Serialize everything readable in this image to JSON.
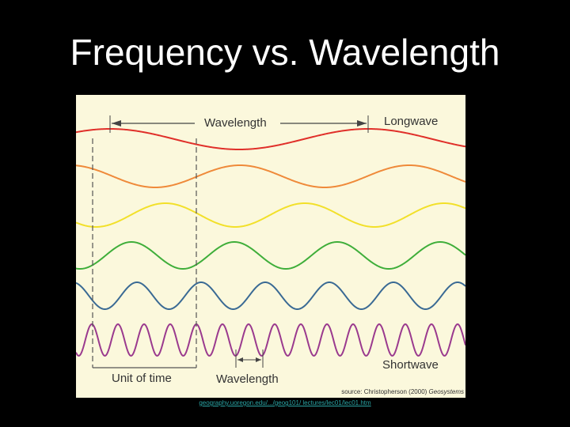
{
  "slide": {
    "title": "Frequency vs. Wavelength",
    "link": "geography.uoregon.edu/.../geog101/ lectures/lec01/lec01.htm"
  },
  "figure": {
    "label_wavelength_top": "Wavelength",
    "label_longwave": "Longwave",
    "label_shortwave": "Shortwave",
    "label_unit_of_time": "Unit of time",
    "label_wavelength_bottom": "Wavelength",
    "source_prefix": "source: Christopherson (2000) ",
    "source_title": "Geosystems",
    "waves": [
      {
        "name": "red",
        "color": "#e0302a"
      },
      {
        "name": "orange",
        "color": "#ef8a3a"
      },
      {
        "name": "yellow",
        "color": "#f2e02a"
      },
      {
        "name": "green",
        "color": "#3fae3a"
      },
      {
        "name": "blue",
        "color": "#3a6a94"
      },
      {
        "name": "purple",
        "color": "#9a3a8e"
      }
    ]
  }
}
